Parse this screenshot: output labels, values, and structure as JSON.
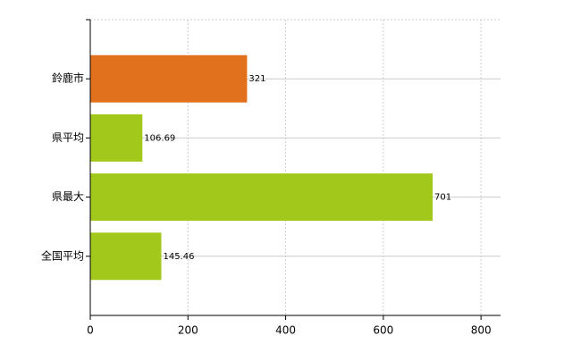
{
  "chart_data": {
    "type": "barh",
    "categories": [
      "鈴鹿市",
      "県平均",
      "県最大",
      "全国平均"
    ],
    "values": [
      321,
      106.69,
      701,
      145.46
    ],
    "colors": [
      "#e2711d",
      "#a3c81c",
      "#a3c81c",
      "#a3c81c"
    ],
    "xlim": [
      0,
      840
    ],
    "xticks": [
      0,
      200,
      400,
      600,
      800
    ],
    "grid": true
  }
}
